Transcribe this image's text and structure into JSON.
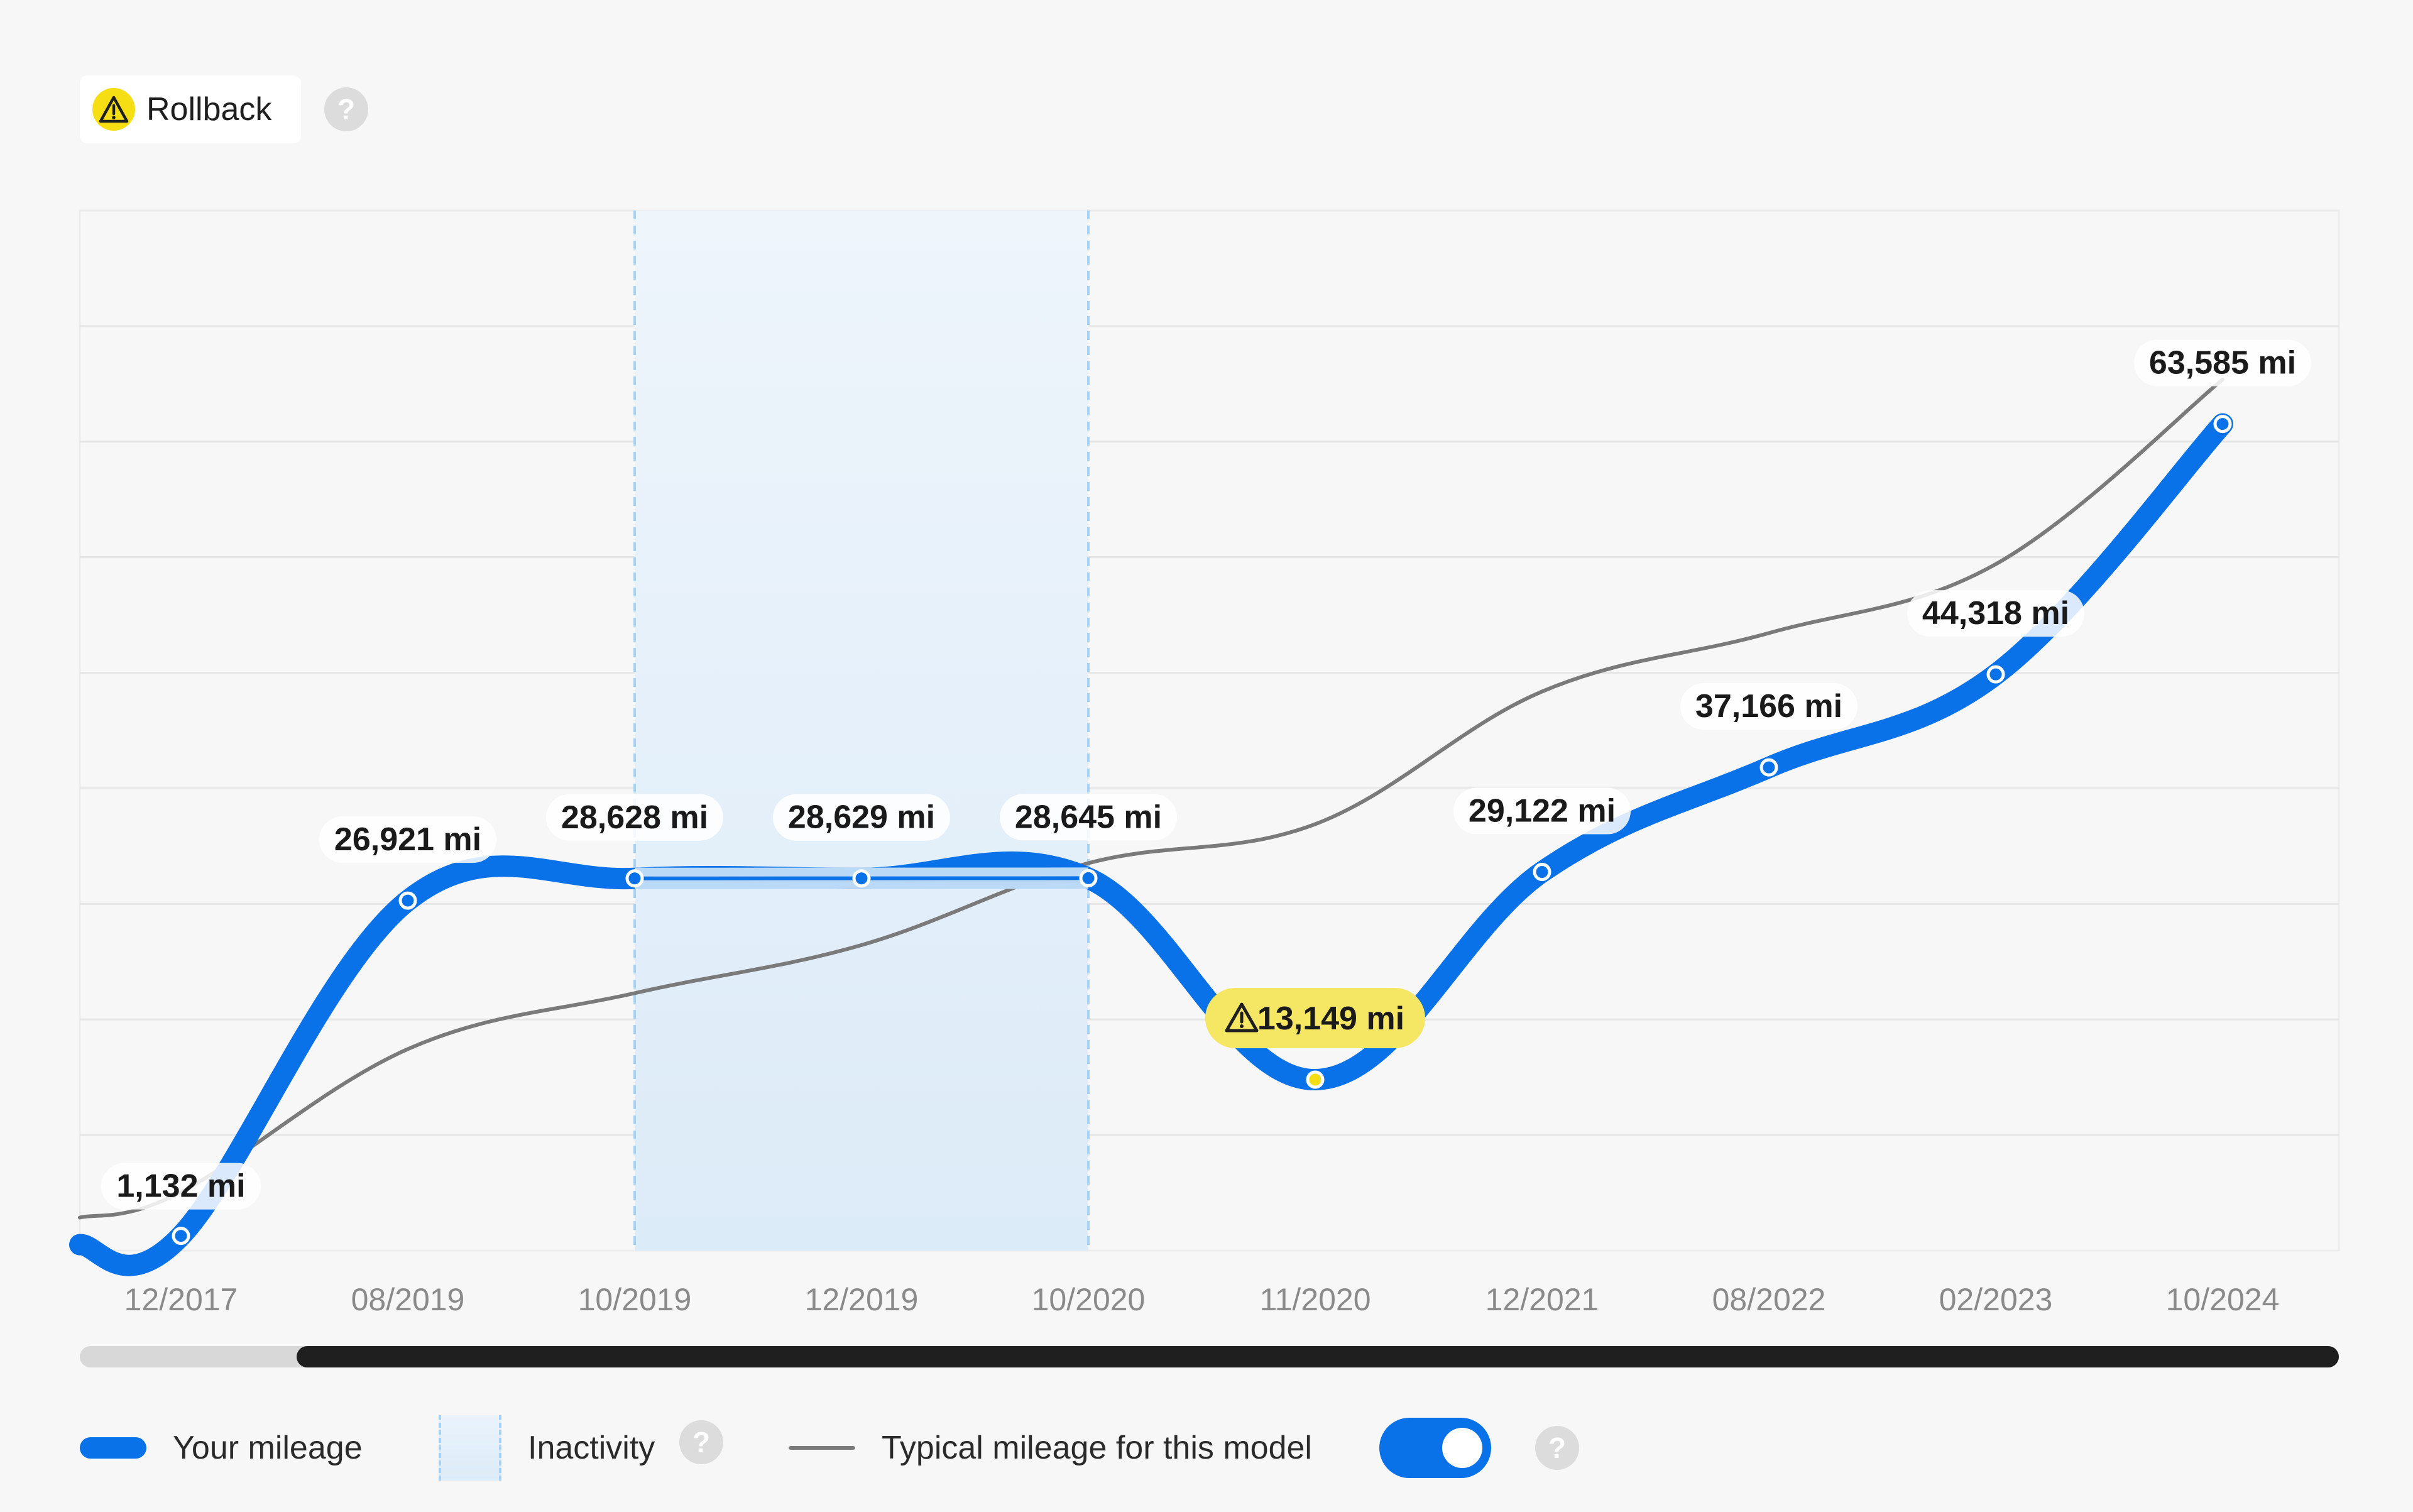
{
  "header": {
    "badge_label": "Rollback",
    "badge_icon": "warning-icon",
    "help_icon": "help-icon"
  },
  "colors": {
    "mileage": "#0a72e8",
    "typical": "#7a7a7a",
    "inactivity_fill": "#e3eff9",
    "inactivity_border": "#a8d2f4",
    "rollback_highlight": "#f5e664"
  },
  "chart_data": {
    "type": "line",
    "title": "",
    "xlabel": "",
    "ylabel": "",
    "ylim": [
      0,
      80000
    ],
    "grid": true,
    "x": [
      "12/2017",
      "08/2019",
      "10/2019",
      "12/2019",
      "10/2020",
      "11/2020",
      "12/2021",
      "08/2022",
      "02/2023",
      "10/2024"
    ],
    "series": [
      {
        "name": "Your mileage",
        "values": [
          1132,
          26921,
          28628,
          28629,
          28645,
          13149,
          29122,
          37166,
          44318,
          63585
        ],
        "labels": [
          "1,132 mi",
          "26,921 mi",
          "28,628 mi",
          "28,629 mi",
          "28,645 mi",
          "13,149 mi",
          "29,122 mi",
          "37,166 mi",
          "44,318 mi",
          "63,585 mi"
        ]
      },
      {
        "name": "Typical mileage for this model",
        "values": [
          4500,
          15500,
          19800,
          23500,
          29800,
          32800,
          43000,
          47500,
          52800,
          67000
        ]
      }
    ],
    "inactivity_range": [
      "10/2019",
      "10/2020"
    ],
    "rollback_point": "11/2020"
  },
  "legend": {
    "mileage_label": "Your mileage",
    "inactivity_label": "Inactivity",
    "typical_label": "Typical mileage for this model",
    "typical_toggle_on": true
  }
}
